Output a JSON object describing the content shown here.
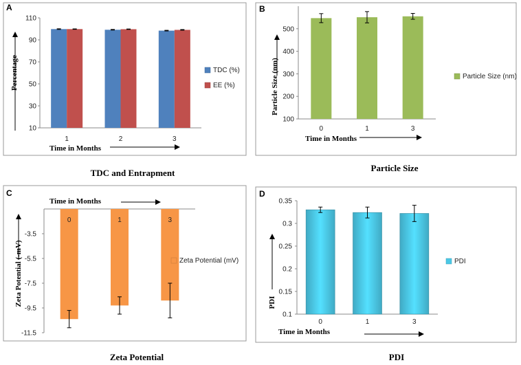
{
  "chart_data": [
    {
      "panel": "A",
      "type": "bar",
      "title": "TDC and Entrapment",
      "xlabel": "Time in Months",
      "ylabel": "Percentage",
      "categories": [
        "1",
        "2",
        "3"
      ],
      "yticks": [
        "10",
        "30",
        "50",
        "70",
        "90",
        "110"
      ],
      "ylim": [
        10,
        110
      ],
      "series": [
        {
          "name": "TDC (%)",
          "color": "#4f81bd",
          "values": [
            99.8,
            99.2,
            98.4
          ],
          "errors": [
            0.3,
            0.3,
            0.3
          ]
        },
        {
          "name": "EE (%)",
          "color": "#c0504d",
          "values": [
            99.8,
            99.7,
            99.1
          ],
          "errors": [
            0.2,
            0.2,
            0.3
          ]
        }
      ]
    },
    {
      "panel": "B",
      "type": "bar",
      "title": "Particle Size",
      "xlabel": "Time in Months",
      "ylabel": "Particle Size (nm)",
      "categories": [
        "0",
        "1",
        "3"
      ],
      "yticks": [
        "100",
        "200",
        "300",
        "400",
        "500"
      ],
      "ylim": [
        100,
        600
      ],
      "series": [
        {
          "name": "Particle Size (nm)",
          "color": "#9bbb59",
          "values": [
            547,
            551,
            555
          ],
          "errors": [
            20,
            25,
            13
          ]
        }
      ]
    },
    {
      "panel": "C",
      "type": "bar",
      "title": "Zeta Potential",
      "xlabel": "Time in Months",
      "ylabel": "Zeta Potential (-mV)",
      "categories": [
        "0",
        "1",
        "3"
      ],
      "yticks": [
        "-3.5",
        "-5.5",
        "-7.5",
        "-9.5",
        "-11.5"
      ],
      "ylim": [
        -11.5,
        -1.5
      ],
      "series": [
        {
          "name": "Zeta Potential (mV)",
          "color": "#f79646",
          "values": [
            -10.4,
            -9.3,
            -8.9
          ],
          "errors": [
            0.7,
            0.7,
            1.4
          ]
        }
      ]
    },
    {
      "panel": "D",
      "type": "bar",
      "title": "PDI",
      "xlabel": "Time in Months",
      "ylabel": "PDI",
      "categories": [
        "0",
        "1",
        "3"
      ],
      "yticks": [
        "0.1",
        "0.15",
        "0.2",
        "0.25",
        "0.3",
        "0.35"
      ],
      "ylim": [
        0.1,
        0.35
      ],
      "series": [
        {
          "name": "PDI",
          "color": "#4bc8e6",
          "values": [
            0.33,
            0.324,
            0.322
          ],
          "errors": [
            0.006,
            0.012,
            0.018
          ]
        }
      ]
    }
  ]
}
